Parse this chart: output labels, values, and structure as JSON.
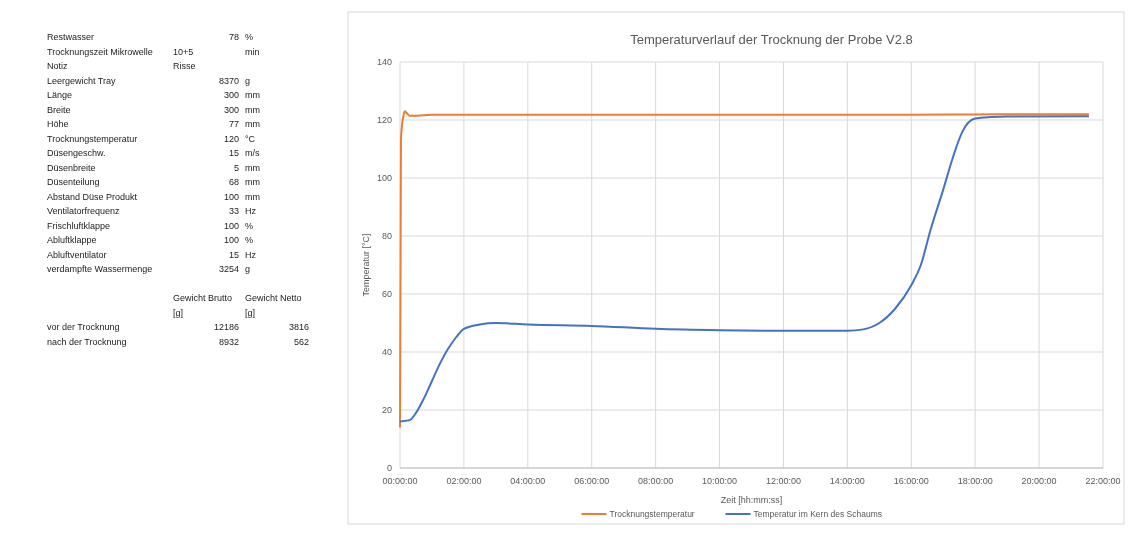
{
  "chart_data": [
    {
      "type": "other",
      "cell_labels": [
        [
          "Restwasser",
          "78",
          "%"
        ],
        [
          "Trocknungszeit Mikrowelle",
          "10+5",
          "min"
        ],
        [
          "Notiz",
          "Risse",
          null
        ],
        [
          "Leergewicht Tray",
          "8370",
          "g"
        ],
        [
          "Länge",
          "300",
          "mm"
        ],
        [
          "Breite",
          "300",
          "mm"
        ],
        [
          "Höhe",
          "77",
          "mm"
        ],
        [
          "Trocknungstemperatur",
          "120",
          "°C"
        ],
        [
          "Düsengeschw.",
          "15",
          "m/s"
        ],
        [
          "Düsenbreite",
          "5",
          "mm"
        ],
        [
          "Düsenteilung",
          "68",
          "mm"
        ],
        [
          "Abstand Düse Produkt",
          "100",
          "mm"
        ],
        [
          "Ventilatorfrequenz",
          "33",
          "Hz"
        ],
        [
          "Frischluftklappe",
          "100",
          "%"
        ],
        [
          "Abluftklappe",
          "100",
          "%"
        ],
        [
          "Abluftventilator",
          "15",
          "Hz"
        ],
        [
          "verdampfte Wassermenge",
          "3254",
          "g"
        ],
        [
          null,
          null,
          null
        ],
        [
          null,
          "Gewicht Brutto",
          "Gewicht Netto"
        ],
        [
          null,
          "[g]",
          "[g]"
        ],
        [
          "vor der Trocknung",
          "12186",
          "3816"
        ],
        [
          "nach der Trocknung",
          "8932",
          "562"
        ]
      ]
    },
    {
      "type": "line",
      "title": "Temperaturverlauf der Trocknung der Probe V2.8",
      "xlabel": "Zeit [hh:mm:ss]",
      "ylabel": "Temperatur [°C]",
      "xlim": [
        0,
        22
      ],
      "xticks": [
        {
          "value": 0,
          "label": "00:00:00"
        },
        {
          "value": 2,
          "label": "02:00:00"
        },
        {
          "value": 4,
          "label": "04:00:00"
        },
        {
          "value": 6,
          "label": "06:00:00"
        },
        {
          "value": 8,
          "label": "08:00:00"
        },
        {
          "value": 10,
          "label": "10:00:00"
        },
        {
          "value": 12,
          "label": "12:00:00"
        },
        {
          "value": 14,
          "label": "14:00:00"
        },
        {
          "value": 16,
          "label": "16:00:00"
        },
        {
          "value": 18,
          "label": "18:00:00"
        },
        {
          "value": 20,
          "label": "20:00:00"
        },
        {
          "value": 22,
          "label": "22:00:00"
        }
      ],
      "ylim": [
        0,
        140
      ],
      "yticks": [
        0,
        20,
        40,
        60,
        80,
        100,
        120,
        140
      ],
      "grid": true,
      "legend": "bottom",
      "line_style": "solid",
      "marker": "none",
      "series": [
        {
          "name": "Trocknungstemperatur",
          "color": "#ed7d31",
          "x": [
            0,
            0.03,
            0.06,
            0.1,
            0.15,
            0.2,
            0.3,
            0.5,
            1,
            2,
            4,
            6,
            8,
            10,
            12,
            14,
            16,
            18,
            20,
            21.56
          ],
          "values": [
            14,
            113,
            118,
            121,
            123,
            122.5,
            121.5,
            121.5,
            121.8,
            121.8,
            121.8,
            121.8,
            121.8,
            121.8,
            121.8,
            121.8,
            121.8,
            121.9,
            122,
            122
          ]
        },
        {
          "name": "Temperatur im Kern des Schaums",
          "color": "#4472c4",
          "x": [
            0,
            0.3,
            0.5,
            0.75,
            1,
            1.25,
            1.5,
            1.75,
            2,
            2.5,
            3,
            4,
            6,
            8,
            10,
            12,
            14,
            14.5,
            15,
            15.5,
            16,
            16.3,
            16.6,
            17,
            17.3,
            17.6,
            18,
            18.5,
            19,
            21.56
          ],
          "values": [
            16,
            16.5,
            19,
            24,
            30,
            36,
            41,
            45,
            48,
            49.5,
            50,
            49.5,
            49,
            48,
            47.5,
            47.3,
            47.3,
            47.8,
            50,
            55,
            63,
            70,
            82,
            96,
            107,
            116,
            120.5,
            121,
            121.2,
            121.3
          ]
        }
      ]
    }
  ]
}
